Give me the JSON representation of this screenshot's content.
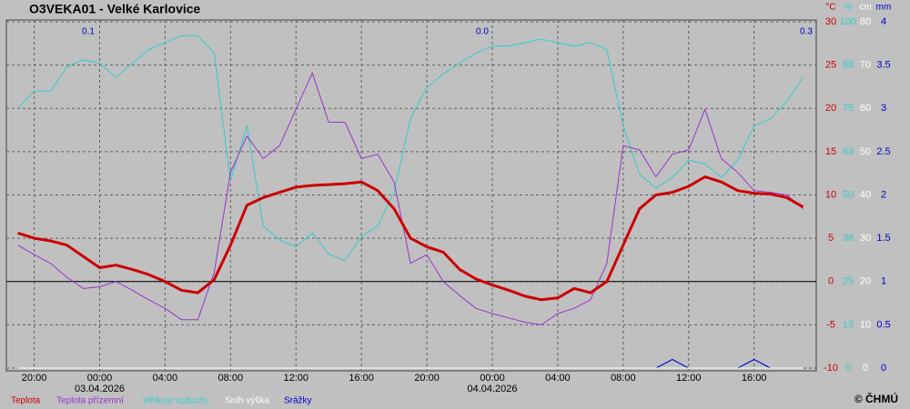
{
  "chart_data": {
    "type": "line",
    "title": "O3VEKA01 - Velké Karlovice",
    "x": [
      -5,
      -4,
      -3,
      -2,
      -1,
      0,
      1,
      2,
      3,
      4,
      5,
      6,
      7,
      8,
      9,
      10,
      11,
      12,
      13,
      14,
      15,
      16,
      17,
      18,
      19,
      20,
      21,
      22,
      23,
      24,
      25,
      26,
      27,
      28,
      29,
      30,
      31,
      32,
      33,
      34,
      35,
      36,
      37,
      38,
      39,
      40,
      41,
      42,
      43
    ],
    "xlim": [
      -5.7,
      43.8
    ],
    "xticks": [
      {
        "value": -4,
        "label": "20:00"
      },
      {
        "value": 0,
        "label": "00:00"
      },
      {
        "value": 4,
        "label": "04:00"
      },
      {
        "value": 8,
        "label": "08:00"
      },
      {
        "value": 12,
        "label": "12:00"
      },
      {
        "value": 16,
        "label": "16:00"
      },
      {
        "value": 20,
        "label": "20:00"
      },
      {
        "value": 24,
        "label": "00:00"
      },
      {
        "value": 28,
        "label": "04:00"
      },
      {
        "value": 32,
        "label": "08:00"
      },
      {
        "value": 36,
        "label": "12:00"
      },
      {
        "value": 40,
        "label": "16:00"
      }
    ],
    "date_ticks": [
      {
        "value": 0,
        "label": "03.04.2026"
      },
      {
        "value": 24,
        "label": "04.04.2026"
      }
    ],
    "grid": true,
    "reference_line": 0,
    "axes": [
      {
        "unit": "°C",
        "color": "#cc0000",
        "ylim": [
          -10,
          30
        ],
        "yticks": [
          -10,
          -5,
          0,
          5,
          10,
          15,
          20,
          25,
          30
        ]
      },
      {
        "unit": "%",
        "color": "#33cccc",
        "ylim": [
          0,
          100
        ],
        "yticks": [
          0,
          {
            "value": 12.5,
            "label": "13"
          },
          25,
          {
            "value": 37.5,
            "label": "38"
          },
          50,
          {
            "value": 62.5,
            "label": "63"
          },
          75,
          {
            "value": 87.5,
            "label": "88"
          },
          100
        ]
      },
      {
        "unit": "cm",
        "color": "#ffffff",
        "ylim": [
          0,
          80
        ],
        "yticks": [
          0,
          10,
          20,
          30,
          40,
          50,
          60,
          70,
          80
        ]
      },
      {
        "unit": "mm",
        "color": "#0000cc",
        "ylim": [
          0,
          4
        ],
        "yticks": [
          0,
          0.5,
          1,
          1.5,
          2,
          2.5,
          3,
          3.5,
          4
        ]
      }
    ],
    "series": [
      {
        "name": "Teplota",
        "color": "#cc0000",
        "axis": 0,
        "width": 3,
        "values": [
          5.6,
          5.0,
          4.7,
          4.2,
          2.9,
          1.6,
          1.9,
          1.4,
          0.8,
          0.0,
          -1.0,
          -1.3,
          0.2,
          4.2,
          8.8,
          9.7,
          10.3,
          10.9,
          11.1,
          11.2,
          11.3,
          11.5,
          10.5,
          8.4,
          5.0,
          4.0,
          3.4,
          1.4,
          0.3,
          -0.4,
          -1.0,
          -1.7,
          -2.1,
          -1.9,
          -0.8,
          -1.3,
          0.0,
          4.2,
          8.4,
          10.0,
          10.3,
          11.0,
          12.1,
          11.5,
          10.5,
          10.2,
          10.1,
          9.7,
          8.6
        ]
      },
      {
        "name": "Teplota přízemní",
        "color": "#9933cc",
        "axis": 0,
        "width": 1,
        "values": [
          4.2,
          3.1,
          2.1,
          0.5,
          -0.8,
          -0.6,
          0.0,
          -1.0,
          -2.1,
          -3.1,
          -4.4,
          -4.4,
          1.0,
          12.6,
          16.8,
          14.2,
          15.7,
          19.9,
          24.1,
          18.4,
          18.4,
          14.2,
          14.7,
          11.5,
          2.1,
          3.1,
          0.0,
          -1.6,
          -3.1,
          -3.7,
          -4.2,
          -4.7,
          -5.0,
          -3.7,
          -3.1,
          -2.1,
          2.1,
          15.7,
          15.2,
          12.1,
          14.7,
          15.2,
          19.9,
          14.2,
          12.6,
          10.5,
          10.3,
          10.0,
          8.4
        ]
      },
      {
        "name": "Vlhkost vzduchu",
        "color": "#33cccc",
        "axis": 1,
        "width": 1,
        "values": [
          75,
          80,
          80,
          87,
          89,
          88,
          84,
          88,
          92,
          94,
          96,
          96,
          91,
          54,
          70,
          41,
          37,
          35,
          39,
          33,
          31,
          38,
          41,
          51,
          72,
          81,
          85,
          88,
          91,
          93,
          93,
          94,
          95,
          94,
          93,
          94,
          92,
          70,
          56,
          52,
          55,
          60,
          59,
          55,
          60,
          70,
          72,
          77,
          84
        ]
      },
      {
        "name": "Sníh výška",
        "color": "#ffffff",
        "axis": 2,
        "width": 1,
        "values": [
          0,
          0,
          0,
          0,
          0,
          0,
          0,
          0,
          0,
          0,
          0,
          0,
          0,
          0,
          0,
          0,
          0,
          0,
          0,
          0,
          0,
          0,
          0,
          0,
          0,
          0,
          0,
          0,
          0,
          0,
          0,
          0,
          0,
          0,
          0,
          0,
          0,
          0,
          0,
          0,
          0,
          0,
          0,
          0,
          0,
          0,
          0,
          0,
          0
        ]
      },
      {
        "name": "Srážky",
        "color": "#0000cc",
        "axis": 3,
        "width": 1,
        "values": [
          0,
          0,
          0,
          0,
          0,
          0,
          0,
          0,
          0,
          0,
          0,
          0,
          0,
          0,
          0,
          0,
          0,
          0,
          0,
          0,
          0,
          0,
          0,
          0,
          0,
          0,
          0,
          0,
          0,
          0,
          0,
          0,
          0,
          0,
          0,
          0,
          0,
          0,
          0,
          0,
          0.1,
          0,
          0,
          0,
          0,
          0.1,
          0,
          0,
          0
        ]
      }
    ],
    "daily_totals": {
      "values": [
        0.1,
        0,
        0.3
      ],
      "value_labels": [
        "0.1",
        "0.0",
        "0.3"
      ],
      "color": "#0000cc"
    },
    "copyright": "© ČHMÚ"
  }
}
